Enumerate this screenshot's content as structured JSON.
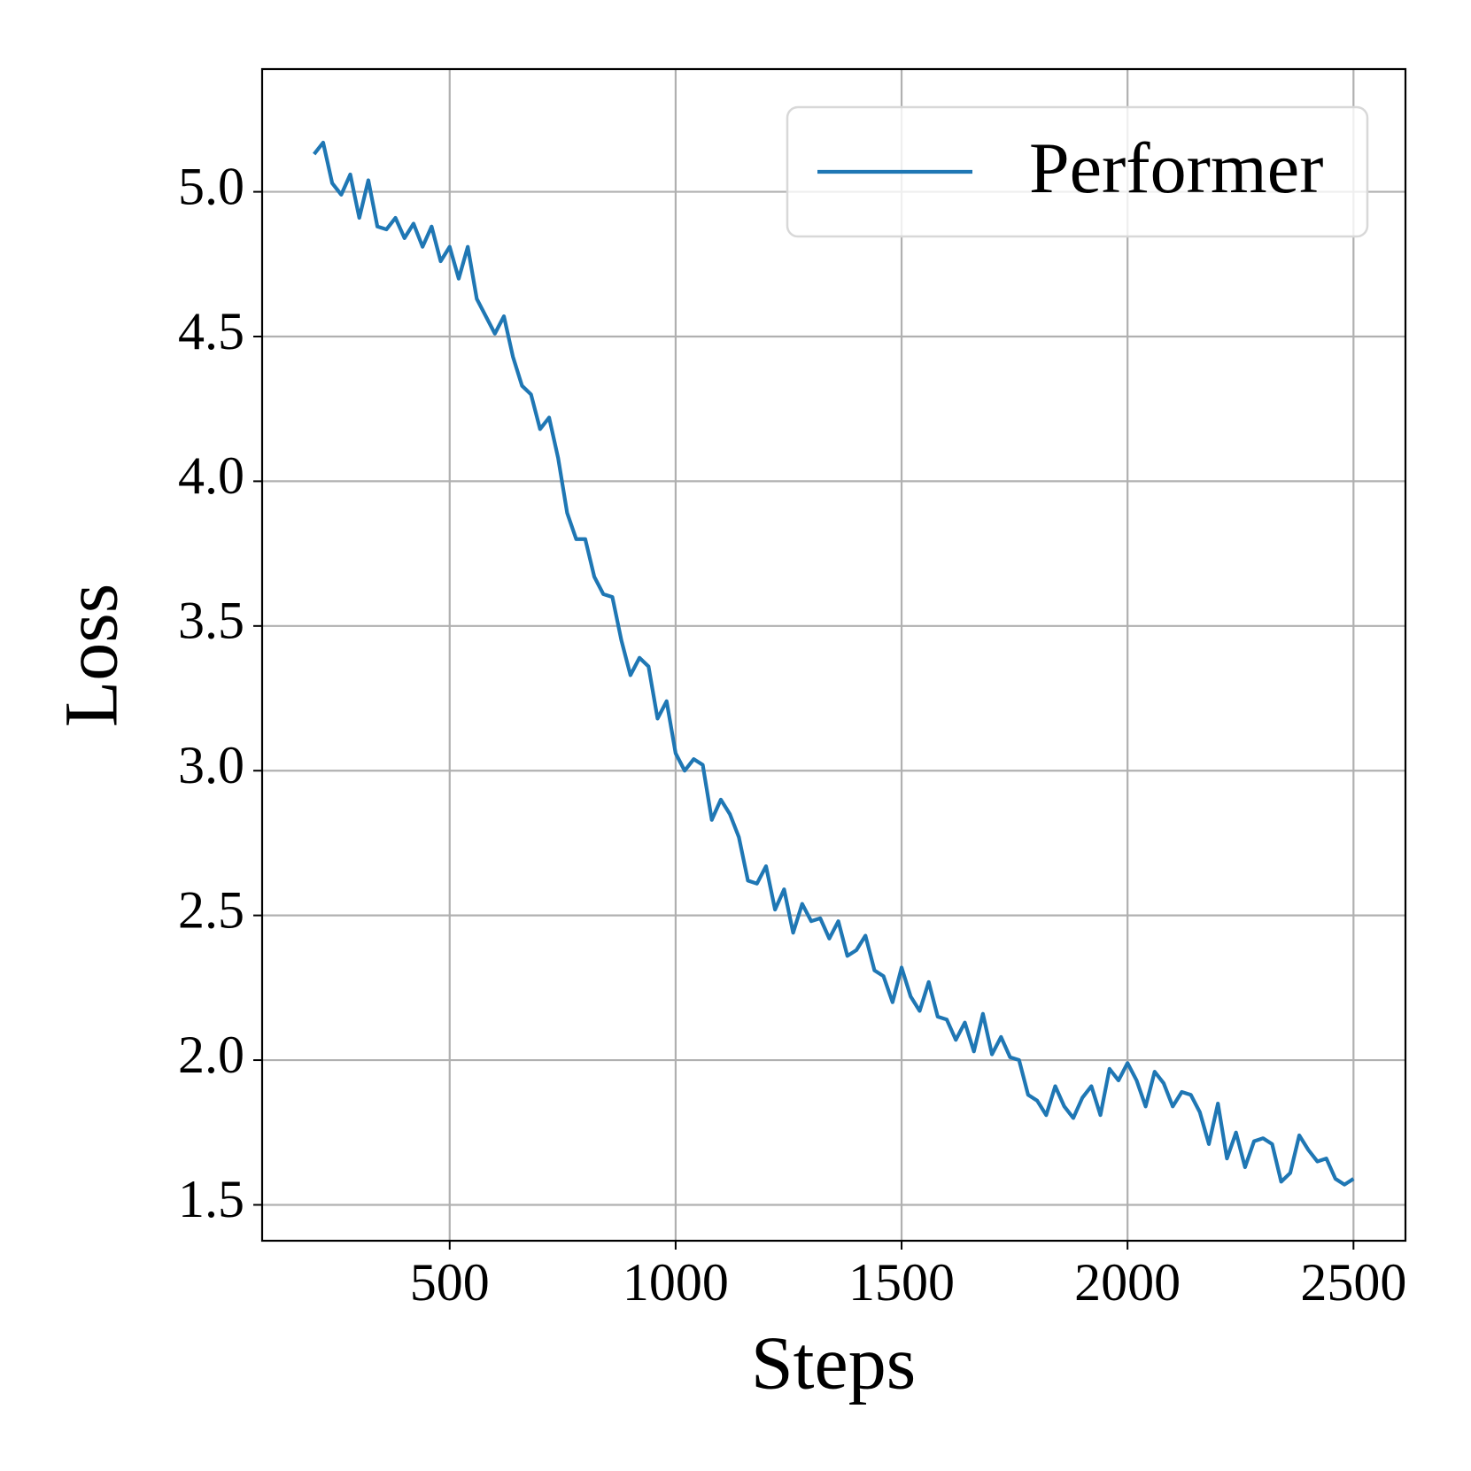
{
  "chart_data": {
    "type": "line",
    "x_label": "Steps",
    "y_label": "Loss",
    "x": [
      200,
      220,
      240,
      260,
      280,
      300,
      320,
      340,
      360,
      380,
      400,
      420,
      440,
      460,
      480,
      500,
      520,
      540,
      560,
      580,
      600,
      620,
      640,
      660,
      680,
      700,
      720,
      740,
      760,
      780,
      800,
      820,
      840,
      860,
      880,
      900,
      920,
      940,
      960,
      980,
      1000,
      1020,
      1040,
      1060,
      1080,
      1100,
      1120,
      1140,
      1160,
      1180,
      1200,
      1220,
      1240,
      1260,
      1280,
      1300,
      1320,
      1340,
      1360,
      1380,
      1400,
      1420,
      1440,
      1460,
      1480,
      1500,
      1520,
      1540,
      1560,
      1580,
      1600,
      1620,
      1640,
      1660,
      1680,
      1700,
      1720,
      1740,
      1760,
      1780,
      1800,
      1820,
      1840,
      1860,
      1880,
      1900,
      1920,
      1940,
      1960,
      1980,
      2000,
      2020,
      2040,
      2060,
      2080,
      2100,
      2120,
      2140,
      2160,
      2180,
      2200,
      2220,
      2240,
      2260,
      2280,
      2300,
      2320,
      2340,
      2360,
      2380,
      2400,
      2420,
      2440,
      2460,
      2480,
      2500
    ],
    "series": [
      {
        "name": "Performer",
        "color": "#1f77b4",
        "values": [
          5.13,
          5.17,
          5.03,
          4.99,
          5.06,
          4.91,
          5.04,
          4.88,
          4.87,
          4.91,
          4.84,
          4.89,
          4.81,
          4.88,
          4.76,
          4.81,
          4.7,
          4.81,
          4.63,
          4.57,
          4.51,
          4.57,
          4.43,
          4.33,
          4.3,
          4.18,
          4.22,
          4.08,
          3.89,
          3.8,
          3.8,
          3.67,
          3.61,
          3.6,
          3.45,
          3.33,
          3.39,
          3.36,
          3.18,
          3.24,
          3.06,
          3.0,
          3.04,
          3.02,
          2.83,
          2.9,
          2.85,
          2.77,
          2.62,
          2.61,
          2.67,
          2.52,
          2.59,
          2.44,
          2.54,
          2.48,
          2.49,
          2.42,
          2.48,
          2.36,
          2.38,
          2.43,
          2.31,
          2.29,
          2.2,
          2.32,
          2.22,
          2.17,
          2.27,
          2.15,
          2.14,
          2.07,
          2.13,
          2.03,
          2.16,
          2.02,
          2.08,
          2.01,
          2.0,
          1.88,
          1.86,
          1.81,
          1.91,
          1.84,
          1.8,
          1.87,
          1.91,
          1.81,
          1.97,
          1.93,
          1.99,
          1.93,
          1.84,
          1.96,
          1.92,
          1.84,
          1.89,
          1.88,
          1.82,
          1.71,
          1.85,
          1.66,
          1.75,
          1.63,
          1.72,
          1.73,
          1.71,
          1.58,
          1.61,
          1.74,
          1.69,
          1.65,
          1.66,
          1.59,
          1.57,
          1.59
        ]
      }
    ],
    "xlim": [
      85,
      2615
    ],
    "ylim": [
      1.376,
      5.424
    ],
    "xticks": [
      500,
      1000,
      1500,
      2000,
      2500
    ],
    "yticks": [
      1.5,
      {
        "value": 2,
        "label": "2.0"
      },
      2.5,
      {
        "value": 3,
        "label": "3.0"
      },
      3.5,
      {
        "value": 4,
        "label": "4.0"
      },
      4.5,
      {
        "value": 5,
        "label": "5.0"
      }
    ],
    "grid": true,
    "legend": "upper right"
  }
}
